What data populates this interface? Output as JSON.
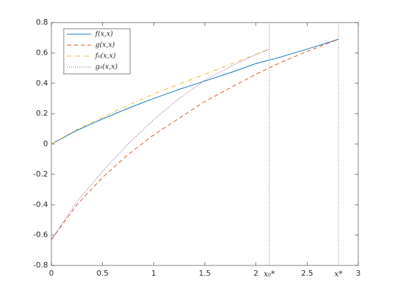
{
  "chart_data": {
    "type": "line",
    "xlim": [
      0,
      3
    ],
    "xticks": [
      0,
      0.5,
      1,
      1.5,
      2,
      2.5,
      3
    ],
    "ylim": [
      -0.8,
      0.8
    ],
    "yticks": [
      -0.8,
      -0.6,
      -0.4,
      -0.2,
      0,
      0.2,
      0.4,
      0.6,
      0.8
    ],
    "legend": "upper left",
    "series": [
      {
        "name": "f(x,x)",
        "color": "#0072bd",
        "style": "solid",
        "x": [
          0,
          0.25,
          0.5,
          0.75,
          1,
          1.25,
          1.5,
          1.75,
          2,
          2.25,
          2.5,
          2.806
        ],
        "values": [
          0,
          0.09,
          0.165,
          0.235,
          0.3,
          0.36,
          0.415,
          0.47,
          0.53,
          0.575,
          0.625,
          0.69
        ]
      },
      {
        "name": "g(x,x)",
        "color": "#d95319",
        "style": "dashed",
        "x": [
          0,
          0.25,
          0.5,
          0.75,
          1,
          1.25,
          1.5,
          1.75,
          2,
          2.25,
          2.5,
          2.806
        ],
        "values": [
          -0.63,
          -0.4,
          -0.22,
          -0.07,
          0.06,
          0.17,
          0.28,
          0.37,
          0.46,
          0.54,
          0.61,
          0.69
        ]
      },
      {
        "name": "f₀(x,x)",
        "color": "#edb120",
        "style": "dashdot",
        "x": [
          0,
          0.25,
          0.5,
          0.75,
          1,
          1.25,
          1.5,
          1.75,
          2,
          2.13
        ],
        "values": [
          0,
          0.095,
          0.175,
          0.255,
          0.33,
          0.395,
          0.46,
          0.525,
          0.59,
          0.625
        ]
      },
      {
        "name": "g₀(x,x)",
        "color": "#7e2f8e",
        "style": "dotted",
        "x": [
          0,
          0.25,
          0.5,
          0.75,
          1,
          1.25,
          1.5,
          1.75,
          2,
          2.13
        ],
        "values": [
          -0.63,
          -0.38,
          -0.18,
          0,
          0.16,
          0.3,
          0.42,
          0.51,
          0.59,
          0.625
        ]
      }
    ],
    "annotations": [
      {
        "x": 2.13,
        "label": "x₀*"
      },
      {
        "x": 2.806,
        "label": "x*"
      }
    ]
  }
}
